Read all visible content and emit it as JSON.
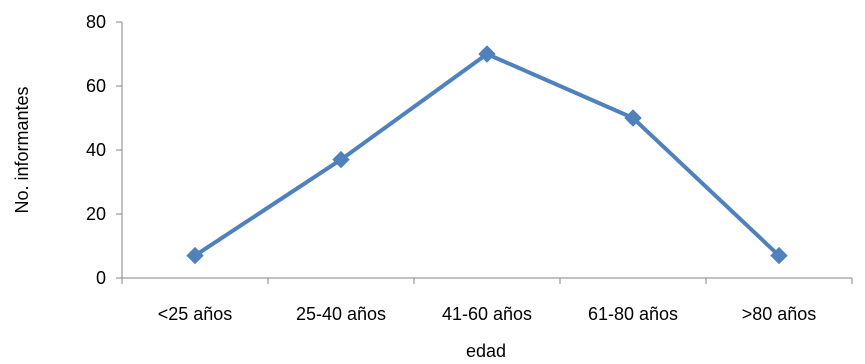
{
  "chart_data": {
    "type": "line",
    "title": "",
    "xlabel": "edad",
    "ylabel": "No. informantes",
    "categories": [
      "<25 años",
      "25-40 años",
      "41-60 años",
      "61-80 años",
      ">80 años"
    ],
    "series": [
      {
        "values": [
          7,
          37,
          70,
          50,
          7
        ]
      }
    ],
    "ylim": [
      0,
      80
    ],
    "yticks": [
      0,
      20,
      40,
      60,
      80
    ],
    "ytick_labels": [
      "0",
      "20",
      "40",
      "60",
      "80"
    ],
    "grid": false,
    "legend": "none",
    "marker": "diamond",
    "series_color": "#4F81BD",
    "axis_color": "#868686"
  }
}
